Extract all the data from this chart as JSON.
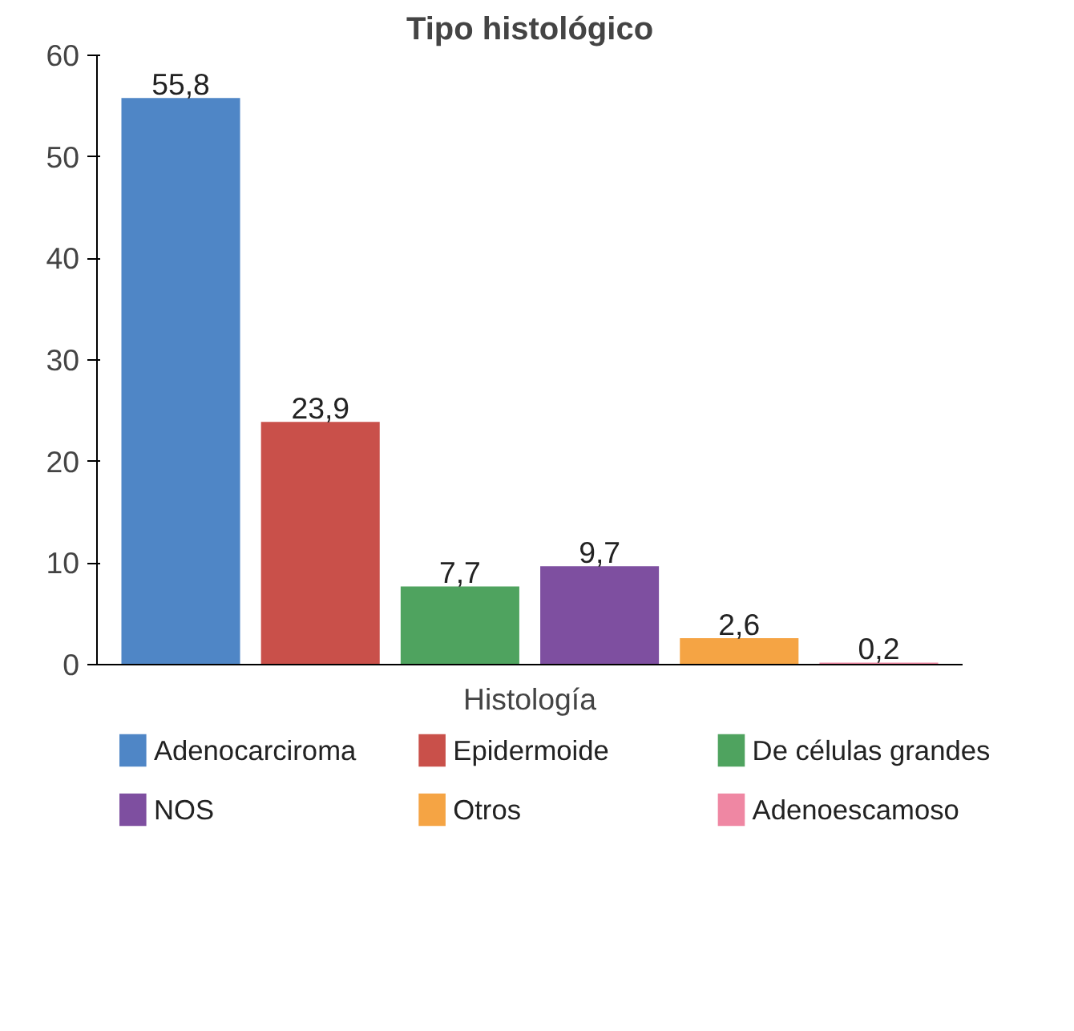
{
  "chart_data": {
    "type": "bar",
    "title": "Tipo histológico",
    "xlabel": "Histología",
    "categories": [
      null,
      null,
      null,
      null,
      null,
      null
    ],
    "series": [
      {
        "name": "Adenocarciroma",
        "color": "#4f86c6",
        "values": [
          55.8,
          null,
          null,
          null,
          null,
          null
        ],
        "value_labels": [
          "55,8",
          null,
          null,
          null,
          null,
          null
        ]
      },
      {
        "name": "Epidermoide",
        "color": "#c9504a",
        "values": [
          null,
          23.9,
          null,
          null,
          null,
          null
        ],
        "value_labels": [
          null,
          "23,9",
          null,
          null,
          null,
          null
        ]
      },
      {
        "name": "De células grandes",
        "color": "#4fa35f",
        "values": [
          null,
          null,
          7.7,
          null,
          null,
          null
        ],
        "value_labels": [
          null,
          null,
          "7,7",
          null,
          null,
          null
        ]
      },
      {
        "name": "NOS",
        "color": "#7e4fa0",
        "values": [
          null,
          null,
          null,
          9.7,
          null,
          null
        ],
        "value_labels": [
          null,
          null,
          null,
          "9,7",
          null,
          null
        ]
      },
      {
        "name": "Otros",
        "color": "#f5a444",
        "values": [
          null,
          null,
          null,
          null,
          2.6,
          null
        ],
        "value_labels": [
          null,
          null,
          null,
          null,
          "2,6",
          null
        ]
      },
      {
        "name": "Adenoescamoso",
        "color": "#ef87a3",
        "values": [
          null,
          null,
          null,
          null,
          null,
          0.2
        ],
        "value_labels": [
          null,
          null,
          null,
          null,
          null,
          "0,2"
        ]
      }
    ],
    "ylim": [
      0,
      60
    ],
    "yticks": [
      0,
      10,
      20,
      30,
      40,
      50,
      60
    ],
    "grid": false,
    "legend": "bottom"
  }
}
